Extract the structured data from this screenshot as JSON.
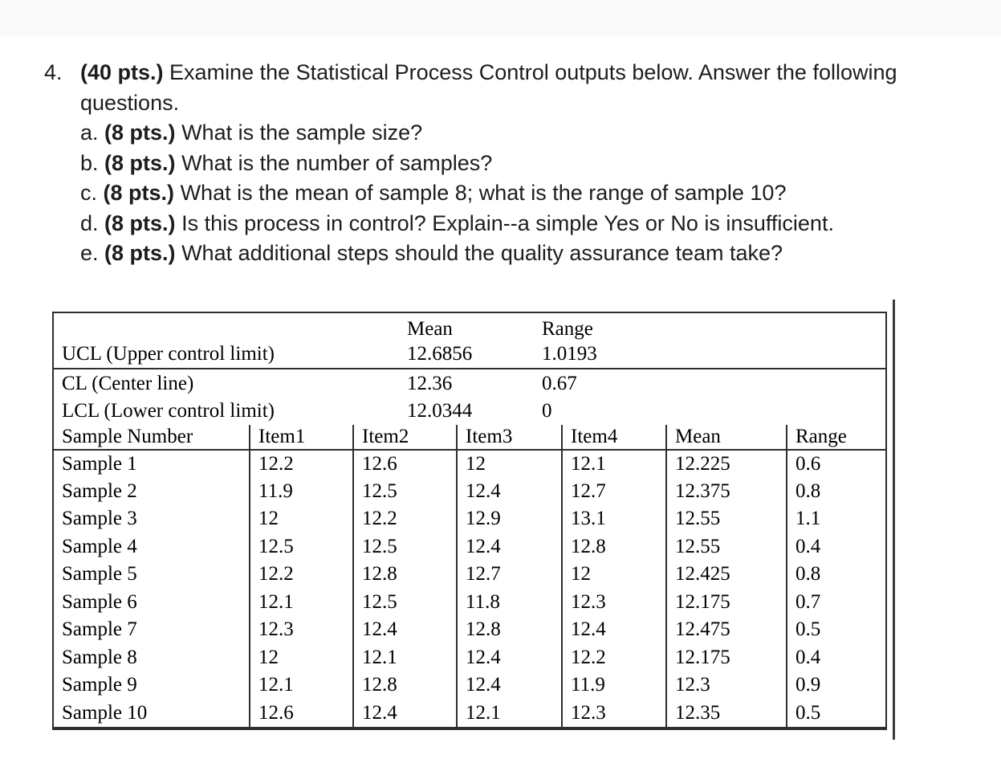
{
  "colors": {
    "top_band": "#fafafa",
    "table_border": "#2e2e2e",
    "text": "#1d1d1f"
  },
  "question": {
    "number": "4.",
    "points": "(40 pts.)",
    "intro": "Examine the Statistical Process Control outputs below. Answer the following questions.",
    "sub_questions": [
      {
        "label": "a.",
        "points": "(8 pts.)",
        "text": "What is the sample size?"
      },
      {
        "label": "b.",
        "points": "(8 pts.)",
        "text": "What is the number of samples?"
      },
      {
        "label": "c.",
        "points": "(8 pts.)",
        "text": "What is the mean of sample 8; what is the range of sample 10?"
      },
      {
        "label": "d.",
        "points": "(8 pts.)",
        "text": "Is this process in control? Explain--a simple Yes or No is insufficient."
      },
      {
        "label": "e.",
        "points": "(8 pts.)",
        "text": "What additional steps should the quality assurance team take?"
      }
    ]
  },
  "table": {
    "limits": {
      "mean_header": "Mean",
      "range_header": "Range",
      "rows": [
        {
          "label": "UCL (Upper control limit)",
          "mean": "12.6856",
          "range": "1.0193"
        },
        {
          "label": "CL (Center line)",
          "mean": "12.36",
          "range": "0.67"
        },
        {
          "label": "LCL (Lower control limit)",
          "mean": "12.0344",
          "range": "0"
        }
      ]
    },
    "samples": {
      "headers": [
        "Sample Number",
        "Item1",
        "Item2",
        "Item3",
        "Item4",
        "Mean",
        "Range"
      ],
      "rows": [
        [
          "Sample 1",
          "12.2",
          "12.6",
          "12",
          "12.1",
          "12.225",
          "0.6"
        ],
        [
          "Sample 2",
          "11.9",
          "12.5",
          "12.4",
          "12.7",
          "12.375",
          "0.8"
        ],
        [
          "Sample 3",
          "12",
          "12.2",
          "12.9",
          "13.1",
          "12.55",
          "1.1"
        ],
        [
          "Sample 4",
          "12.5",
          "12.5",
          "12.4",
          "12.8",
          "12.55",
          "0.4"
        ],
        [
          "Sample 5",
          "12.2",
          "12.8",
          "12.7",
          "12",
          "12.425",
          "0.8"
        ],
        [
          "Sample 6",
          "12.1",
          "12.5",
          "11.8",
          "12.3",
          "12.175",
          "0.7"
        ],
        [
          "Sample 7",
          "12.3",
          "12.4",
          "12.8",
          "12.4",
          "12.475",
          "0.5"
        ],
        [
          "Sample 8",
          "12",
          "12.1",
          "12.4",
          "12.2",
          "12.175",
          "0.4"
        ],
        [
          "Sample 9",
          "12.1",
          "12.8",
          "12.4",
          "11.9",
          "12.3",
          "0.9"
        ],
        [
          "Sample 10",
          "12.6",
          "12.4",
          "12.1",
          "12.3",
          "12.35",
          "0.5"
        ]
      ]
    }
  }
}
